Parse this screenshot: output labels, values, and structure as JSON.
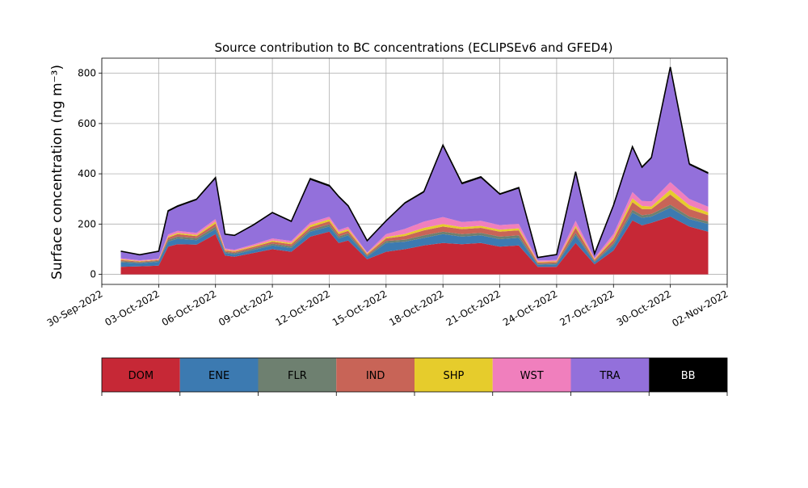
{
  "chart_data": {
    "type": "area",
    "stacked": true,
    "title": "Source contribution to BC concentrations (ECLIPSEv6 and GFED4)",
    "ylabel": "Surface concentration (ng m⁻³)",
    "xlabel": "",
    "x_axis": "date",
    "xlim": [
      "2022-09-30",
      "2022-11-02"
    ],
    "ylim": [
      -40,
      860
    ],
    "grid": true,
    "x_ticks": [
      "2022-09-30",
      "2022-10-03",
      "2022-10-06",
      "2022-10-09",
      "2022-10-12",
      "2022-10-15",
      "2022-10-18",
      "2022-10-21",
      "2022-10-24",
      "2022-10-27",
      "2022-10-30",
      "2022-11-02"
    ],
    "x_tick_labels": [
      "30-Sep-2022",
      "03-Oct-2022",
      "06-Oct-2022",
      "09-Oct-2022",
      "12-Oct-2022",
      "15-Oct-2022",
      "18-Oct-2022",
      "21-Oct-2022",
      "24-Oct-2022",
      "27-Oct-2022",
      "30-Oct-2022",
      "02-Nov-2022"
    ],
    "y_ticks": [
      0,
      200,
      400,
      600,
      800
    ],
    "y_tick_labels": [
      "0",
      "200",
      "400",
      "600",
      "800"
    ],
    "x": [
      "2022-10-01",
      "2022-10-02",
      "2022-10-03",
      "2022-10-03T12:00",
      "2022-10-04",
      "2022-10-05",
      "2022-10-06",
      "2022-10-06T12:00",
      "2022-10-07",
      "2022-10-08",
      "2022-10-09",
      "2022-10-10",
      "2022-10-11",
      "2022-10-12",
      "2022-10-12T12:00",
      "2022-10-13",
      "2022-10-14",
      "2022-10-15",
      "2022-10-16",
      "2022-10-17",
      "2022-10-18",
      "2022-10-19",
      "2022-10-20",
      "2022-10-21",
      "2022-10-22",
      "2022-10-23",
      "2022-10-24",
      "2022-10-25",
      "2022-10-26",
      "2022-10-27",
      "2022-10-28",
      "2022-10-28T12:00",
      "2022-10-29",
      "2022-10-30",
      "2022-10-31",
      "2022-11-01"
    ],
    "series": [
      {
        "name": "DOM",
        "color": "#c62836",
        "values": [
          30,
          32,
          35,
          110,
          120,
          118,
          160,
          75,
          70,
          85,
          100,
          90,
          150,
          170,
          125,
          135,
          60,
          90,
          100,
          115,
          125,
          120,
          125,
          110,
          115,
          30,
          30,
          125,
          40,
          95,
          215,
          195,
          205,
          230,
          190,
          170
        ]
      },
      {
        "name": "ENE",
        "color": "#3c7ab1",
        "values": [
          18,
          12,
          15,
          20,
          22,
          18,
          20,
          10,
          10,
          12,
          15,
          15,
          20,
          20,
          18,
          20,
          10,
          35,
          30,
          30,
          35,
          30,
          30,
          30,
          30,
          8,
          10,
          30,
          8,
          20,
          30,
          30,
          25,
          35,
          30,
          30
        ]
      },
      {
        "name": "FLR",
        "color": "#6e8070",
        "values": [
          5,
          4,
          4,
          8,
          8,
          8,
          10,
          5,
          5,
          6,
          7,
          7,
          8,
          9,
          8,
          8,
          5,
          8,
          8,
          10,
          10,
          10,
          10,
          10,
          10,
          4,
          4,
          10,
          4,
          8,
          12,
          10,
          10,
          12,
          10,
          10
        ]
      },
      {
        "name": "IND",
        "color": "#c86457",
        "values": [
          4,
          3,
          3,
          8,
          10,
          8,
          12,
          5,
          5,
          6,
          8,
          8,
          10,
          12,
          10,
          10,
          5,
          10,
          15,
          20,
          20,
          20,
          20,
          20,
          20,
          5,
          5,
          20,
          5,
          15,
          30,
          25,
          20,
          40,
          30,
          25
        ]
      },
      {
        "name": "SHP",
        "color": "#e6cc2c",
        "values": [
          3,
          2,
          2,
          5,
          5,
          5,
          8,
          3,
          3,
          4,
          5,
          5,
          8,
          8,
          7,
          7,
          3,
          5,
          8,
          10,
          10,
          8,
          8,
          8,
          8,
          3,
          3,
          8,
          3,
          8,
          15,
          12,
          10,
          20,
          15,
          12
        ]
      },
      {
        "name": "WST",
        "color": "#f07fbd",
        "values": [
          4,
          3,
          3,
          8,
          8,
          8,
          10,
          5,
          5,
          6,
          8,
          8,
          10,
          10,
          8,
          9,
          4,
          12,
          20,
          25,
          28,
          20,
          20,
          18,
          18,
          5,
          5,
          20,
          5,
          15,
          25,
          20,
          20,
          30,
          25,
          22
        ]
      },
      {
        "name": "TRA",
        "color": "#9370db",
        "values": [
          26,
          20,
          28,
          90,
          95,
          130,
          160,
          55,
          55,
          75,
          100,
          75,
          170,
          120,
          130,
          80,
          45,
          50,
          100,
          115,
          280,
          150,
          170,
          120,
          140,
          10,
          20,
          190,
          15,
          110,
          175,
          130,
          170,
          450,
          135,
          130
        ]
      },
      {
        "name": "BB",
        "color": "#000000",
        "values": [
          2,
          2,
          2,
          4,
          4,
          4,
          5,
          2,
          2,
          3,
          3,
          3,
          5,
          5,
          4,
          4,
          2,
          3,
          4,
          5,
          6,
          5,
          5,
          4,
          4,
          2,
          2,
          5,
          2,
          4,
          6,
          5,
          5,
          8,
          5,
          5
        ]
      }
    ],
    "legend": {
      "placement": "bottom",
      "items": [
        {
          "label": "DOM",
          "color": "#c62836",
          "text_color": "#000000"
        },
        {
          "label": "ENE",
          "color": "#3c7ab1",
          "text_color": "#000000"
        },
        {
          "label": "FLR",
          "color": "#6e8070",
          "text_color": "#000000"
        },
        {
          "label": "IND",
          "color": "#c86457",
          "text_color": "#000000"
        },
        {
          "label": "SHP",
          "color": "#e6cc2c",
          "text_color": "#000000"
        },
        {
          "label": "WST",
          "color": "#f07fbd",
          "text_color": "#000000"
        },
        {
          "label": "TRA",
          "color": "#9370db",
          "text_color": "#000000"
        },
        {
          "label": "BB",
          "color": "#000000",
          "text_color": "#ffffff"
        }
      ]
    }
  }
}
